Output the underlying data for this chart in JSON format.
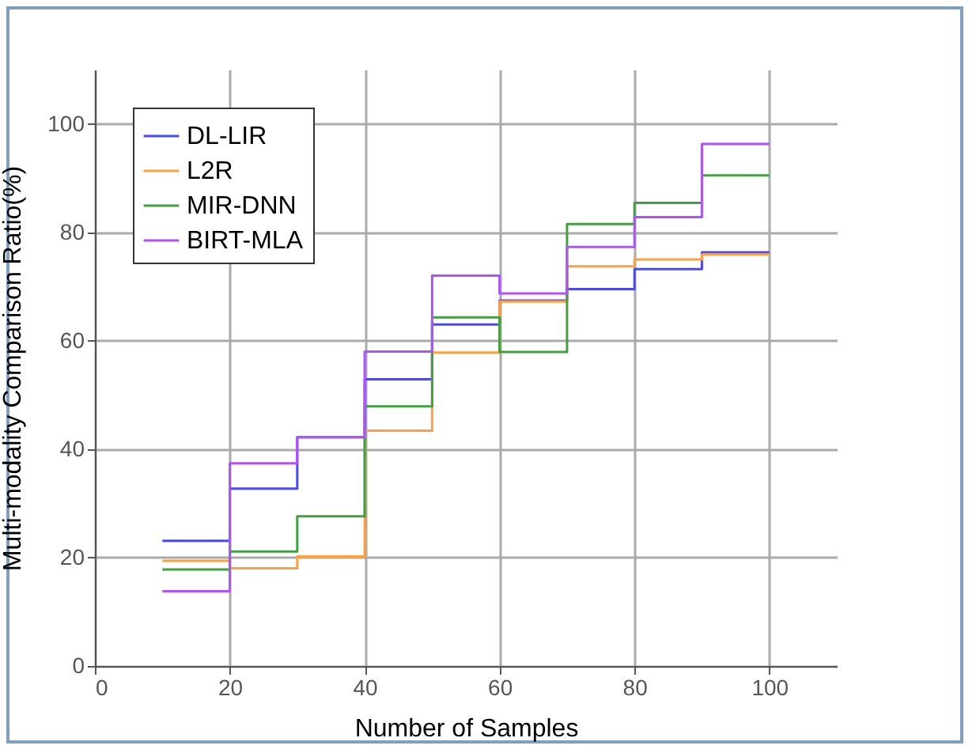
{
  "chart_data": {
    "type": "step",
    "xlabel": "Number of Samples",
    "ylabel": "Multi-modality Comparison Ratio(%)",
    "x": [
      10,
      20,
      30,
      40,
      50,
      60,
      70,
      80,
      90,
      100
    ],
    "series": [
      {
        "name": "DL-LIR",
        "color": "#4848ff",
        "values": [
          23.1,
          32.7,
          42.2,
          52.9,
          63.0,
          67.4,
          69.5,
          73.2,
          76.3,
          76.3
        ]
      },
      {
        "name": "L2R",
        "color": "#ffa040",
        "values": [
          19.4,
          18.0,
          20.2,
          43.4,
          57.8,
          67.2,
          73.7,
          75.0,
          75.9,
          75.9
        ]
      },
      {
        "name": "MIR-DNN",
        "color": "#40a040",
        "values": [
          17.8,
          21.1,
          27.6,
          47.9,
          64.3,
          57.9,
          81.5,
          85.4,
          90.5,
          90.5
        ]
      },
      {
        "name": "BIRT-MLA",
        "color": "#b050ff",
        "values": [
          13.8,
          37.4,
          42.2,
          58.0,
          72.0,
          68.7,
          77.3,
          82.8,
          96.3,
          96.3
        ]
      }
    ],
    "xlim": [
      0,
      110
    ],
    "xticks": [
      0,
      20,
      40,
      60,
      80,
      100
    ],
    "ylim": [
      0,
      110
    ],
    "yticks": [
      0,
      20,
      40,
      60,
      80,
      100
    ],
    "grid": true,
    "legend": "top left"
  }
}
